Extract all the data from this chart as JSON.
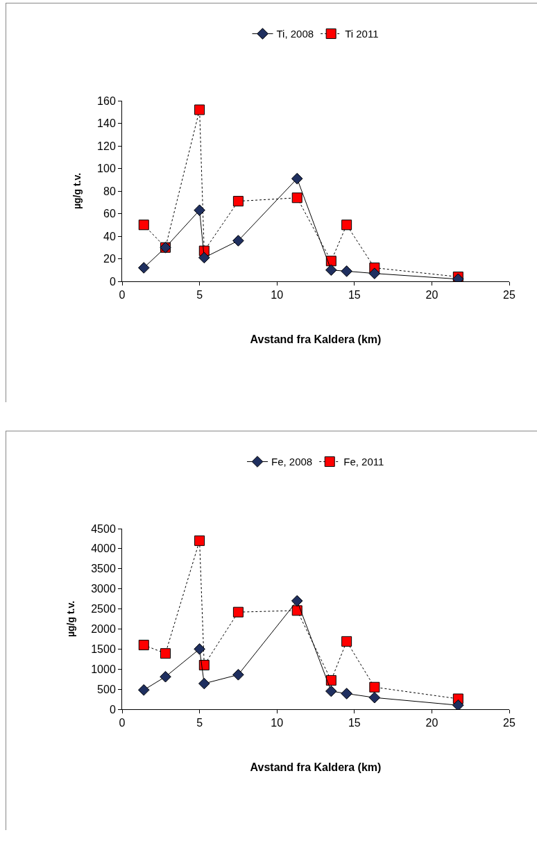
{
  "chart_data": [
    {
      "type": "line",
      "xlabel": "Avstand fra Kaldera (km)",
      "ylabel": "µg/g t.v.",
      "x": [
        1.4,
        2.8,
        5.0,
        5.3,
        7.5,
        11.3,
        13.5,
        14.5,
        16.3,
        21.7
      ],
      "xlim": [
        0,
        25
      ],
      "xticks": [
        0,
        5,
        10,
        15,
        20,
        25
      ],
      "ylim": [
        0,
        160
      ],
      "yticks": [
        0,
        20,
        40,
        60,
        80,
        100,
        120,
        140,
        160
      ],
      "grid": false,
      "legend": "top",
      "series": [
        {
          "name": "Ti, 2008",
          "color": "#1f2f5f",
          "marker": "diamond",
          "line_style": "solid",
          "values": [
            12,
            30,
            63,
            21,
            36,
            91,
            10,
            9,
            7,
            2
          ]
        },
        {
          "name": "Ti 2011",
          "color": "#ff0000",
          "marker": "square",
          "line_style": "dotted",
          "values": [
            50,
            30,
            152,
            27,
            71,
            74,
            18,
            50,
            12,
            4
          ]
        }
      ]
    },
    {
      "type": "line",
      "xlabel": "Avstand fra Kaldera (km)",
      "ylabel": "µg/g t.v.",
      "x": [
        1.4,
        2.8,
        5.0,
        5.3,
        7.5,
        11.3,
        13.5,
        14.5,
        16.3,
        21.7
      ],
      "xlim": [
        0,
        25
      ],
      "xticks": [
        0,
        5,
        10,
        15,
        20,
        25
      ],
      "ylim": [
        0,
        4500
      ],
      "yticks": [
        0,
        500,
        1000,
        1500,
        2000,
        2500,
        3000,
        3500,
        4000,
        4500
      ],
      "grid": false,
      "legend": "top",
      "series": [
        {
          "name": "Fe, 2008",
          "color": "#1f2f5f",
          "marker": "diamond",
          "line_style": "solid",
          "values": [
            480,
            810,
            1500,
            640,
            860,
            2700,
            450,
            390,
            290,
            100
          ]
        },
        {
          "name": "Fe, 2011",
          "color": "#ff0000",
          "marker": "square",
          "line_style": "dotted",
          "values": [
            1600,
            1390,
            4200,
            1100,
            2420,
            2460,
            720,
            1690,
            550,
            260
          ]
        }
      ]
    }
  ]
}
